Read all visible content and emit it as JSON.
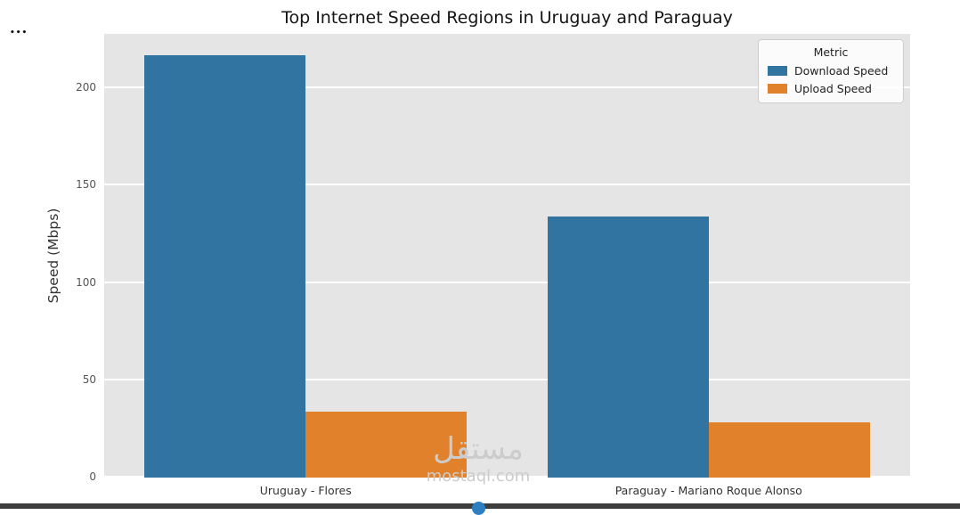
{
  "window": {
    "more_options_glyph": "•••"
  },
  "chart_data": {
    "type": "bar",
    "title": "Top Internet Speed Regions in Uruguay and Paraguay",
    "categories": [
      "Uruguay - Flores",
      "Paraguay - Mariano Roque Alonso"
    ],
    "series": [
      {
        "name": "Download Speed",
        "color": "#3274a1",
        "values": [
          217,
          134
        ]
      },
      {
        "name": "Upload Speed",
        "color": "#e1812c",
        "values": [
          34,
          28.5
        ]
      }
    ],
    "xlabel": "",
    "ylabel": "Speed (Mbps)",
    "ylim": [
      0,
      228
    ],
    "yticks": [
      0,
      50,
      100,
      150,
      200
    ],
    "grid": true,
    "plot_background": "#e5e5e5",
    "legend": {
      "title": "Metric",
      "position": "upper right",
      "entries": [
        "Download Speed",
        "Upload Speed"
      ]
    }
  },
  "watermark": {
    "arabic": "مستقل",
    "domain": "mostaql.com"
  }
}
